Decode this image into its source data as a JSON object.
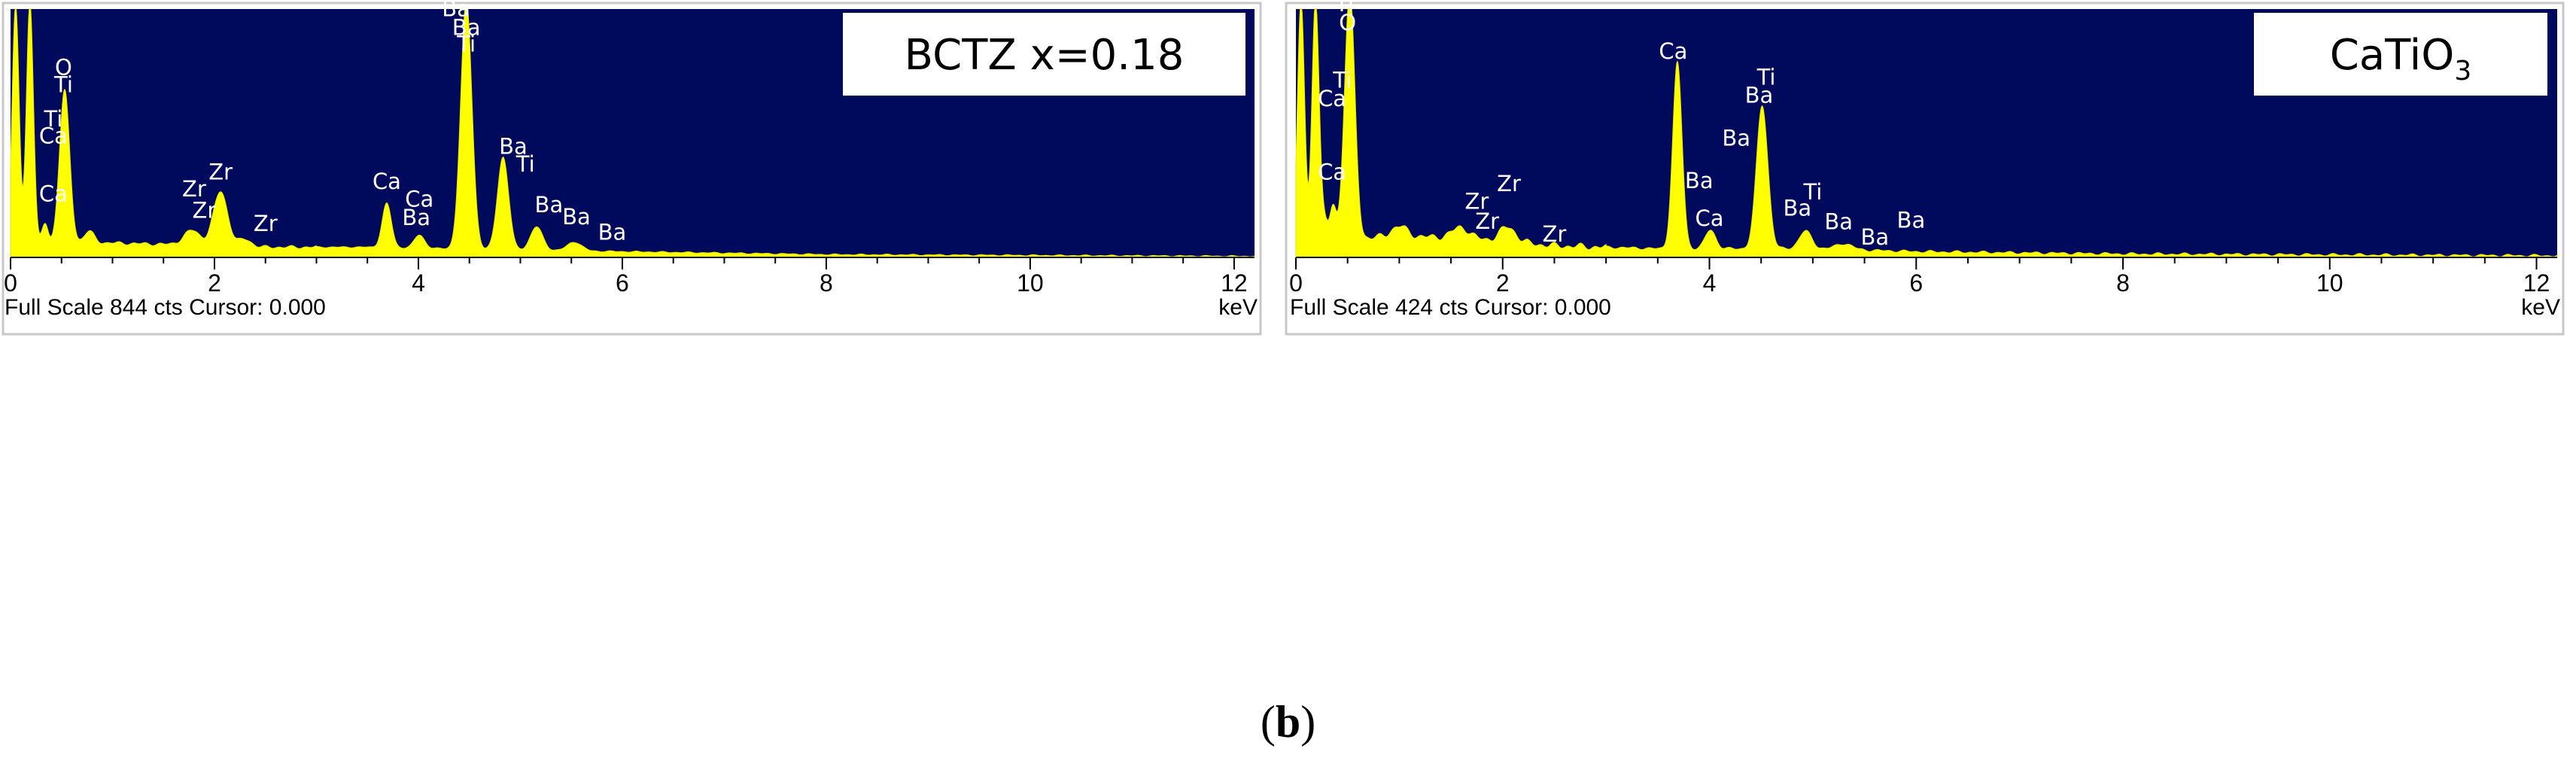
{
  "figure": {
    "caption_open": "(",
    "caption_letter": "b",
    "caption_close": ")",
    "colors": {
      "plot_bg": "#000a5c",
      "spectrum": "#ffff00",
      "outline": "#c8c8c8"
    }
  },
  "chart_data": [
    {
      "type": "area",
      "sample_label": "BCTZ x=0.18",
      "xlabel": "keV",
      "xlim": [
        0,
        12.2
      ],
      "ylim": [
        0,
        844
      ],
      "x_ticks": [
        0,
        2,
        4,
        6,
        8,
        10,
        12
      ],
      "footer": "Full Scale 844 cts Cursor: 0.000",
      "baseline": [
        [
          0.1,
          10
        ],
        [
          0.3,
          45
        ],
        [
          0.9,
          50
        ],
        [
          1.5,
          45
        ],
        [
          2.5,
          35
        ],
        [
          3.5,
          35
        ],
        [
          5,
          25
        ],
        [
          6,
          20
        ],
        [
          8,
          10
        ],
        [
          12.2,
          4
        ]
      ],
      "peaks": [
        {
          "x": 0.05,
          "y": 844,
          "w": 0.035
        },
        {
          "x": 0.19,
          "y": 844,
          "w": 0.035
        },
        {
          "x": 0.34,
          "y": 70,
          "w": 0.03
        },
        {
          "x": 0.53,
          "y": 520,
          "w": 0.05
        },
        {
          "x": 0.77,
          "y": 40,
          "w": 0.05
        },
        {
          "x": 1.78,
          "y": 50,
          "w": 0.08
        },
        {
          "x": 2.06,
          "y": 185,
          "w": 0.07
        },
        {
          "x": 2.3,
          "y": 25,
          "w": 0.06
        },
        {
          "x": 3.69,
          "y": 150,
          "w": 0.045
        },
        {
          "x": 4.01,
          "y": 45,
          "w": 0.05
        },
        {
          "x": 4.47,
          "y": 844,
          "w": 0.055
        },
        {
          "x": 4.83,
          "y": 315,
          "w": 0.055
        },
        {
          "x": 5.16,
          "y": 80,
          "w": 0.06
        },
        {
          "x": 5.53,
          "y": 30,
          "w": 0.07
        }
      ],
      "peak_labels": [
        {
          "text": "O",
          "x": 0.52,
          "y": 620
        },
        {
          "text": "Ti",
          "x": 0.52,
          "y": 562
        },
        {
          "text": "Ti",
          "x": 0.42,
          "y": 445
        },
        {
          "text": "Ca",
          "x": 0.42,
          "y": 387
        },
        {
          "text": "Ca",
          "x": 0.42,
          "y": 190
        },
        {
          "text": "Zr",
          "x": 2.06,
          "y": 265
        },
        {
          "text": "Zr",
          "x": 1.8,
          "y": 207
        },
        {
          "text": "Zr",
          "x": 1.9,
          "y": 134
        },
        {
          "text": "Zr",
          "x": 2.5,
          "y": 90
        },
        {
          "text": "Ca",
          "x": 3.69,
          "y": 233
        },
        {
          "text": "Ca",
          "x": 4.01,
          "y": 172
        },
        {
          "text": "Ba",
          "x": 3.98,
          "y": 110
        },
        {
          "text": "Ba",
          "x": 4.37,
          "y": 820
        },
        {
          "text": "Ba",
          "x": 4.47,
          "y": 756
        },
        {
          "text": "Ti",
          "x": 4.47,
          "y": 700
        },
        {
          "text": "Ba",
          "x": 4.93,
          "y": 352
        },
        {
          "text": "Ti",
          "x": 5.05,
          "y": 292
        },
        {
          "text": "Ba",
          "x": 5.28,
          "y": 154
        },
        {
          "text": "Ba",
          "x": 5.55,
          "y": 112
        },
        {
          "text": "Ba",
          "x": 5.9,
          "y": 60
        }
      ]
    },
    {
      "type": "area",
      "sample_label": "CaTiO",
      "sample_label_sub": "3",
      "xlabel": "keV",
      "xlim": [
        0,
        12.2
      ],
      "ylim": [
        0,
        424
      ],
      "x_ticks": [
        0,
        2,
        4,
        6,
        8,
        10,
        12
      ],
      "footer": "Full Scale 424 cts Cursor: 0.000",
      "baseline": [
        [
          0.1,
          10
        ],
        [
          0.3,
          30
        ],
        [
          0.9,
          35
        ],
        [
          1.5,
          35
        ],
        [
          2.5,
          20
        ],
        [
          3.5,
          15
        ],
        [
          5,
          15
        ],
        [
          6,
          10
        ],
        [
          8,
          6
        ],
        [
          12.2,
          3
        ]
      ],
      "peaks": [
        {
          "x": 0.05,
          "y": 424,
          "w": 0.035
        },
        {
          "x": 0.19,
          "y": 424,
          "w": 0.035
        },
        {
          "x": 0.27,
          "y": 30,
          "w": 0.03
        },
        {
          "x": 0.36,
          "y": 60,
          "w": 0.03
        },
        {
          "x": 0.52,
          "y": 424,
          "w": 0.05
        },
        {
          "x": 1.0,
          "y": 18,
          "w": 0.08
        },
        {
          "x": 1.6,
          "y": 18,
          "w": 0.08
        },
        {
          "x": 2.05,
          "y": 25,
          "w": 0.08
        },
        {
          "x": 3.69,
          "y": 318,
          "w": 0.045
        },
        {
          "x": 4.01,
          "y": 32,
          "w": 0.05
        },
        {
          "x": 4.51,
          "y": 245,
          "w": 0.055
        },
        {
          "x": 4.93,
          "y": 30,
          "w": 0.06
        },
        {
          "x": 5.3,
          "y": 10,
          "w": 0.08
        }
      ],
      "peak_labels": [
        {
          "text": "Ti",
          "x": 0.47,
          "y": 420
        },
        {
          "text": "O",
          "x": 0.5,
          "y": 388
        },
        {
          "text": "Ti",
          "x": 0.45,
          "y": 290
        },
        {
          "text": "Ca",
          "x": 0.35,
          "y": 258
        },
        {
          "text": "Ca",
          "x": 0.35,
          "y": 133
        },
        {
          "text": "Zr",
          "x": 2.06,
          "y": 113
        },
        {
          "text": "Zr",
          "x": 1.75,
          "y": 83
        },
        {
          "text": "Zr",
          "x": 1.85,
          "y": 49
        },
        {
          "text": "Zr",
          "x": 2.5,
          "y": 27
        },
        {
          "text": "Ca",
          "x": 3.65,
          "y": 339
        },
        {
          "text": "Ti",
          "x": 4.55,
          "y": 295
        },
        {
          "text": "Ba",
          "x": 4.48,
          "y": 264
        },
        {
          "text": "Ba",
          "x": 4.26,
          "y": 191
        },
        {
          "text": "Ba",
          "x": 3.9,
          "y": 118
        },
        {
          "text": "Ti",
          "x": 5.0,
          "y": 99
        },
        {
          "text": "Ba",
          "x": 4.85,
          "y": 71
        },
        {
          "text": "Ca",
          "x": 4.0,
          "y": 54
        },
        {
          "text": "Ba",
          "x": 5.25,
          "y": 48
        },
        {
          "text": "Ba",
          "x": 5.95,
          "y": 51
        },
        {
          "text": "Ba",
          "x": 5.6,
          "y": 22
        }
      ]
    }
  ]
}
